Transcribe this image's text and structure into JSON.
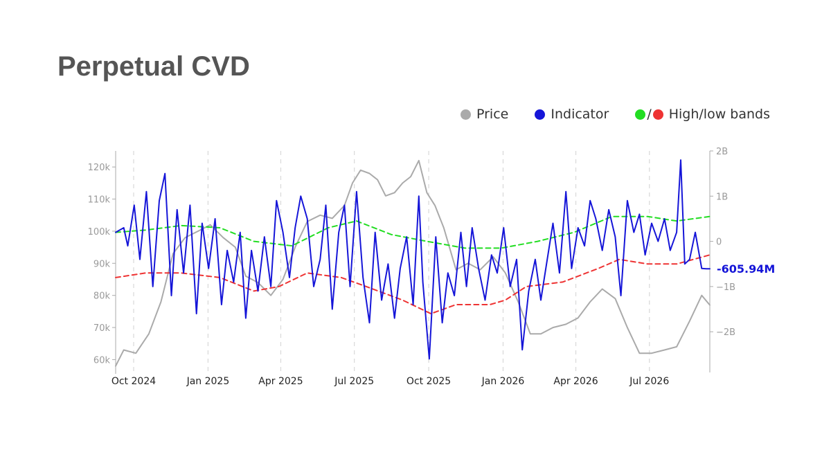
{
  "title": "Perpetual CVD",
  "legend": [
    {
      "label": "Price",
      "color": "#aaaaaa"
    },
    {
      "label": "Indicator",
      "color": "#1515d8"
    },
    {
      "label": "High/low bands",
      "color_high": "#22dd22",
      "color_low": "#ee3333"
    }
  ],
  "legend_separator": "/",
  "colors": {
    "price": "#aaaaaa",
    "indicator": "#1515d8",
    "high_band": "#22dd22",
    "low_band": "#ee3333",
    "grid": "#d8d8d8",
    "axis": "#aaaaaa"
  },
  "chart_data": {
    "type": "line",
    "x_axis": {
      "ticks": [
        "Oct 2024",
        "Jan 2025",
        "Apr 2025",
        "Jul 2025",
        "Oct 2025",
        "Jan 2026",
        "Apr 2026",
        "Jul 2026"
      ],
      "range": [
        "2024-09-25",
        "2026-09-30"
      ]
    },
    "y_left": {
      "label": "",
      "ticks": [
        "60k",
        "70k",
        "80k",
        "90k",
        "100k",
        "110k",
        "120k"
      ],
      "tick_values": [
        60000,
        70000,
        80000,
        90000,
        100000,
        110000,
        120000
      ],
      "range": [
        56000,
        125000
      ]
    },
    "y_right": {
      "label": "",
      "ticks": [
        "−2B",
        "−1B",
        "0",
        "1B",
        "2B"
      ],
      "tick_values": [
        -2000000000,
        -1000000000,
        0,
        1000000000,
        2000000000
      ],
      "range": [
        -2900000000,
        2000000000
      ]
    },
    "last_value_label": "-605.94M",
    "grid": "vertical dashed at month ticks",
    "series": [
      {
        "name": "Price",
        "axis": "left",
        "x": [
          "2024-09-25",
          "2024-10-05",
          "2024-10-20",
          "2024-11-05",
          "2024-11-20",
          "2024-12-05",
          "2024-12-20",
          "2025-01-05",
          "2025-01-20",
          "2025-02-05",
          "2025-02-20",
          "2025-03-05",
          "2025-03-20",
          "2025-04-05",
          "2025-04-20",
          "2025-05-05",
          "2025-05-20",
          "2025-06-05",
          "2025-06-20",
          "2025-07-05",
          "2025-07-15",
          "2025-07-25",
          "2025-08-05",
          "2025-08-15",
          "2025-08-25",
          "2025-09-05",
          "2025-09-15",
          "2025-09-25",
          "2025-10-05",
          "2025-10-15",
          "2025-10-25",
          "2025-11-05",
          "2025-11-20",
          "2025-12-05",
          "2025-12-20",
          "2026-01-05",
          "2026-01-20",
          "2026-02-05",
          "2026-02-20",
          "2026-03-05",
          "2026-03-20",
          "2026-04-05",
          "2026-04-20",
          "2026-05-05",
          "2026-05-20",
          "2026-06-05",
          "2026-06-20",
          "2026-07-05",
          "2026-07-20",
          "2026-08-05",
          "2026-08-20",
          "2026-09-05",
          "2026-09-20",
          "2026-09-30"
        ],
        "y": [
          58000,
          63000,
          62000,
          68000,
          78000,
          93000,
          98000,
          100000,
          102000,
          98000,
          95000,
          86000,
          84000,
          80000,
          85000,
          95000,
          103000,
          105000,
          104000,
          108000,
          115000,
          119000,
          118000,
          116000,
          111000,
          112000,
          115000,
          117000,
          122000,
          112000,
          108000,
          101000,
          88000,
          90000,
          88000,
          92000,
          87000,
          78000,
          68000,
          68000,
          70000,
          71000,
          73000,
          78000,
          82000,
          79000,
          70000,
          62000,
          62000,
          63000,
          64000,
          72000,
          80000,
          77000
        ]
      },
      {
        "name": "Indicator",
        "axis": "right",
        "x": [
          "2024-09-25",
          "2024-10-05",
          "2024-10-10",
          "2024-10-18",
          "2024-10-25",
          "2024-11-02",
          "2024-11-10",
          "2024-11-18",
          "2024-11-25",
          "2024-12-03",
          "2024-12-10",
          "2024-12-18",
          "2024-12-26",
          "2025-01-03",
          "2025-01-10",
          "2025-01-18",
          "2025-01-26",
          "2025-02-03",
          "2025-02-10",
          "2025-02-18",
          "2025-02-26",
          "2025-03-05",
          "2025-03-12",
          "2025-03-20",
          "2025-03-28",
          "2025-04-05",
          "2025-04-12",
          "2025-04-20",
          "2025-04-28",
          "2025-05-05",
          "2025-05-12",
          "2025-05-20",
          "2025-05-28",
          "2025-06-05",
          "2025-06-12",
          "2025-06-20",
          "2025-06-28",
          "2025-07-05",
          "2025-07-12",
          "2025-07-20",
          "2025-07-28",
          "2025-08-05",
          "2025-08-12",
          "2025-08-20",
          "2025-08-28",
          "2025-09-05",
          "2025-09-12",
          "2025-09-20",
          "2025-09-28",
          "2025-10-05",
          "2025-10-10",
          "2025-10-18",
          "2025-10-26",
          "2025-11-03",
          "2025-11-10",
          "2025-11-18",
          "2025-11-26",
          "2025-12-03",
          "2025-12-10",
          "2025-12-18",
          "2025-12-26",
          "2026-01-03",
          "2026-01-10",
          "2026-01-18",
          "2026-01-26",
          "2026-02-03",
          "2026-02-10",
          "2026-02-18",
          "2026-02-26",
          "2026-03-05",
          "2026-03-12",
          "2026-03-20",
          "2026-03-28",
          "2026-04-05",
          "2026-04-12",
          "2026-04-20",
          "2026-04-28",
          "2026-05-05",
          "2026-05-12",
          "2026-05-20",
          "2026-05-28",
          "2026-06-05",
          "2026-06-12",
          "2026-06-20",
          "2026-06-28",
          "2026-07-05",
          "2026-07-12",
          "2026-07-20",
          "2026-07-28",
          "2026-08-05",
          "2026-08-12",
          "2026-08-20",
          "2026-08-25",
          "2026-08-30",
          "2026-09-05",
          "2026-09-12",
          "2026-09-20",
          "2026-09-26",
          "2026-09-30"
        ],
        "y": [
          200000000,
          300000000,
          -100000000,
          800000000,
          -400000000,
          1100000000,
          -1000000000,
          900000000,
          1500000000,
          -1200000000,
          700000000,
          -700000000,
          800000000,
          -1600000000,
          400000000,
          -600000000,
          500000000,
          -1400000000,
          -200000000,
          -900000000,
          200000000,
          -1700000000,
          -200000000,
          -1100000000,
          100000000,
          -1000000000,
          900000000,
          200000000,
          -800000000,
          300000000,
          1000000000,
          500000000,
          -1000000000,
          -400000000,
          800000000,
          -1500000000,
          200000000,
          800000000,
          -1000000000,
          1100000000,
          -800000000,
          -1800000000,
          200000000,
          -1300000000,
          -500000000,
          -1700000000,
          -600000000,
          100000000,
          -1400000000,
          1000000000,
          -900000000,
          -2600000000,
          100000000,
          -1800000000,
          -700000000,
          -1200000000,
          200000000,
          -1000000000,
          300000000,
          -600000000,
          -1300000000,
          -300000000,
          -700000000,
          300000000,
          -1000000000,
          -400000000,
          -2400000000,
          -1100000000,
          -400000000,
          -1300000000,
          -500000000,
          400000000,
          -700000000,
          1100000000,
          -600000000,
          300000000,
          -100000000,
          900000000,
          500000000,
          -200000000,
          700000000,
          100000000,
          -1200000000,
          900000000,
          200000000,
          600000000,
          -300000000,
          400000000,
          0,
          500000000,
          -200000000,
          200000000,
          1800000000,
          -500000000,
          -400000000,
          200000000,
          -600000000,
          -605940000,
          -605940000
        ]
      },
      {
        "name": "High band",
        "axis": "right",
        "x": [
          "2024-09-25",
          "2024-11-01",
          "2024-12-15",
          "2025-02-01",
          "2025-03-15",
          "2025-05-01",
          "2025-06-15",
          "2025-07-20",
          "2025-09-01",
          "2025-10-15",
          "2025-12-01",
          "2026-01-15",
          "2026-03-01",
          "2026-04-15",
          "2026-06-01",
          "2026-07-15",
          "2026-08-20",
          "2026-09-30"
        ],
        "y": [
          200000000,
          250000000,
          350000000,
          300000000,
          0,
          -100000000,
          300000000,
          450000000,
          150000000,
          0,
          -150000000,
          -150000000,
          0,
          200000000,
          550000000,
          550000000,
          450000000,
          550000000
        ]
      },
      {
        "name": "Low band",
        "axis": "right",
        "x": [
          "2024-09-25",
          "2024-11-01",
          "2024-12-15",
          "2025-02-01",
          "2025-03-15",
          "2025-04-15",
          "2025-05-20",
          "2025-07-01",
          "2025-08-01",
          "2025-09-15",
          "2025-10-20",
          "2025-11-20",
          "2026-01-01",
          "2026-01-20",
          "2026-02-15",
          "2026-04-01",
          "2026-05-15",
          "2026-06-10",
          "2026-07-15",
          "2026-08-20",
          "2026-09-30"
        ],
        "y": [
          -800000000,
          -700000000,
          -700000000,
          -800000000,
          -1100000000,
          -1000000000,
          -700000000,
          -800000000,
          -1000000000,
          -1300000000,
          -1600000000,
          -1400000000,
          -1400000000,
          -1300000000,
          -1000000000,
          -900000000,
          -600000000,
          -400000000,
          -500000000,
          -500000000,
          -300000000
        ]
      }
    ]
  }
}
